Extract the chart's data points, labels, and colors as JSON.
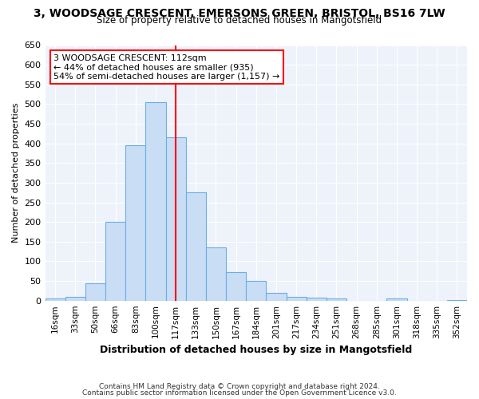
{
  "title_line1": "3, WOODSAGE CRESCENT, EMERSONS GREEN, BRISTOL, BS16 7LW",
  "title_line2": "Size of property relative to detached houses in Mangotsfield",
  "xlabel": "Distribution of detached houses by size in Mangotsfield",
  "ylabel": "Number of detached properties",
  "categories": [
    "16sqm",
    "33sqm",
    "50sqm",
    "66sqm",
    "83sqm",
    "100sqm",
    "117sqm",
    "133sqm",
    "150sqm",
    "167sqm",
    "184sqm",
    "201sqm",
    "217sqm",
    "234sqm",
    "251sqm",
    "268sqm",
    "285sqm",
    "301sqm",
    "318sqm",
    "335sqm",
    "352sqm"
  ],
  "bar_values": [
    5,
    10,
    45,
    200,
    395,
    505,
    415,
    275,
    135,
    73,
    50,
    20,
    10,
    8,
    5,
    0,
    0,
    5,
    0,
    0,
    2
  ],
  "bar_color": "#c9ddf5",
  "bar_edge_color": "#6aaee8",
  "annotation_text_line1": "3 WOODSAGE CRESCENT: 112sqm",
  "annotation_text_line2": "← 44% of detached houses are smaller (935)",
  "annotation_text_line3": "54% of semi-detached houses are larger (1,157) →",
  "annotation_box_color": "white",
  "annotation_box_edge_color": "red",
  "vline_color": "red",
  "vline_x": 6,
  "footnote1": "Contains HM Land Registry data © Crown copyright and database right 2024.",
  "footnote2": "Contains public sector information licensed under the Open Government Licence v3.0.",
  "ylim": [
    0,
    650
  ],
  "yticks": [
    0,
    50,
    100,
    150,
    200,
    250,
    300,
    350,
    400,
    450,
    500,
    550,
    600,
    650
  ],
  "background_color": "#ffffff",
  "plot_bg_color": "#eef2fb",
  "grid_color": "#ffffff"
}
